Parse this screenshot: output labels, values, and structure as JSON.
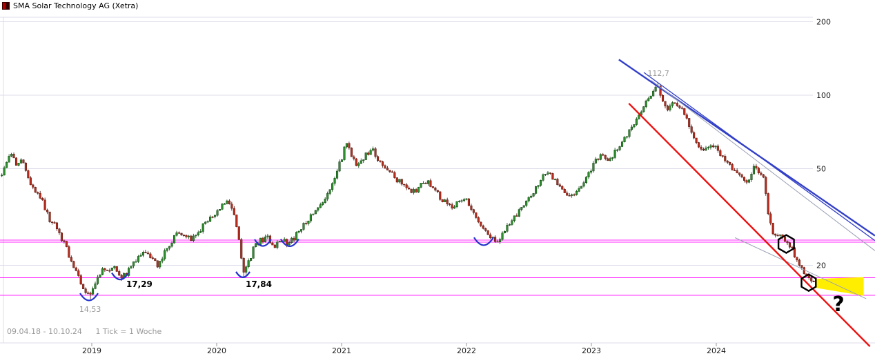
{
  "window": {
    "title": "SMA Solar Technology AG (Xetra)"
  },
  "footer": {
    "range_label": "09.04.18 - 10.10.24",
    "tick_label": "1 Tick = 1 Woche"
  },
  "colors": {
    "up_fill": "#2e8f2e",
    "up_stroke": "#0a3c0a",
    "down_fill": "#bb2d1e",
    "down_stroke": "#4a0f06",
    "grid": "#dcdcEA",
    "axis_text": "#1a1a1a",
    "magenta": "#ff2bff",
    "blue_trend": "#3340c8",
    "gray_trend": "#9aa0b4",
    "red_trend": "#ee1010",
    "arc_blue": "#2233cc",
    "hexagon": "#000000",
    "yellow_zone": "#ffee00",
    "muted_text": "#999999",
    "annotation_text": "#000000"
  },
  "chart_data": {
    "type": "candlestick",
    "title": "SMA Solar Technology AG (Xetra)",
    "instrument": "SMA Solar Technology AG",
    "exchange": "Xetra",
    "period": "09.04.18 - 10.10.24",
    "interval": "1 Tick = 1 Woche",
    "y_scale": "log",
    "y_ticks": [
      200,
      100,
      50,
      20
    ],
    "x_ticks": [
      2019,
      2020,
      2021,
      2022,
      2023,
      2024
    ],
    "x_range": [
      2018.28,
      2024.78
    ],
    "weeks": 340,
    "support_lines": [
      25.4,
      24.9,
      17.8,
      15.1
    ],
    "price_path_anchors": [
      [
        2018.28,
        47
      ],
      [
        2018.32,
        54
      ],
      [
        2018.36,
        57
      ],
      [
        2018.4,
        51
      ],
      [
        2018.44,
        54
      ],
      [
        2018.49,
        46
      ],
      [
        2018.53,
        42
      ],
      [
        2018.58,
        39
      ],
      [
        2018.62,
        35
      ],
      [
        2018.66,
        31
      ],
      [
        2018.71,
        29
      ],
      [
        2018.75,
        26
      ],
      [
        2018.79,
        24
      ],
      [
        2018.83,
        21
      ],
      [
        2018.87,
        19.5
      ],
      [
        2018.91,
        17
      ],
      [
        2018.95,
        15.5
      ],
      [
        2018.99,
        14.9
      ],
      [
        2019.03,
        17
      ],
      [
        2019.08,
        19.5
      ],
      [
        2019.13,
        18.5
      ],
      [
        2019.18,
        19.5
      ],
      [
        2019.23,
        17.8
      ],
      [
        2019.28,
        18.5
      ],
      [
        2019.33,
        20.5
      ],
      [
        2019.38,
        22
      ],
      [
        2019.43,
        22.5
      ],
      [
        2019.48,
        21
      ],
      [
        2019.53,
        20
      ],
      [
        2019.58,
        22.5
      ],
      [
        2019.64,
        25
      ],
      [
        2019.69,
        27.5
      ],
      [
        2019.74,
        27
      ],
      [
        2019.79,
        25.5
      ],
      [
        2019.84,
        27
      ],
      [
        2019.89,
        29
      ],
      [
        2019.94,
        31
      ],
      [
        2020.0,
        33
      ],
      [
        2020.05,
        35.5
      ],
      [
        2020.1,
        36.5
      ],
      [
        2020.14,
        32
      ],
      [
        2020.18,
        25
      ],
      [
        2020.22,
        18.5
      ],
      [
        2020.26,
        21
      ],
      [
        2020.31,
        24.5
      ],
      [
        2020.36,
        25.5
      ],
      [
        2020.41,
        26
      ],
      [
        2020.46,
        24
      ],
      [
        2020.51,
        26
      ],
      [
        2020.56,
        24.5
      ],
      [
        2020.61,
        25.5
      ],
      [
        2020.66,
        28
      ],
      [
        2020.71,
        30
      ],
      [
        2020.76,
        32
      ],
      [
        2020.81,
        34
      ],
      [
        2020.86,
        37
      ],
      [
        2020.91,
        41
      ],
      [
        2020.96,
        48
      ],
      [
        2021.0,
        55
      ],
      [
        2021.04,
        65
      ],
      [
        2021.08,
        57
      ],
      [
        2021.12,
        52
      ],
      [
        2021.17,
        55
      ],
      [
        2021.21,
        58
      ],
      [
        2021.25,
        60
      ],
      [
        2021.29,
        54
      ],
      [
        2021.34,
        50
      ],
      [
        2021.39,
        48
      ],
      [
        2021.44,
        45
      ],
      [
        2021.49,
        43
      ],
      [
        2021.54,
        41
      ],
      [
        2021.59,
        40
      ],
      [
        2021.64,
        43
      ],
      [
        2021.69,
        44
      ],
      [
        2021.74,
        41
      ],
      [
        2021.79,
        38
      ],
      [
        2021.84,
        36
      ],
      [
        2021.89,
        35
      ],
      [
        2021.94,
        37
      ],
      [
        2021.99,
        38
      ],
      [
        2022.04,
        34
      ],
      [
        2022.09,
        31
      ],
      [
        2022.14,
        28.5
      ],
      [
        2022.19,
        26
      ],
      [
        2022.24,
        25
      ],
      [
        2022.29,
        27
      ],
      [
        2022.34,
        29.5
      ],
      [
        2022.39,
        32
      ],
      [
        2022.44,
        34
      ],
      [
        2022.49,
        37
      ],
      [
        2022.54,
        40
      ],
      [
        2022.59,
        45
      ],
      [
        2022.64,
        48
      ],
      [
        2022.69,
        46
      ],
      [
        2022.74,
        43
      ],
      [
        2022.79,
        40
      ],
      [
        2022.84,
        38.5
      ],
      [
        2022.89,
        41
      ],
      [
        2022.94,
        44
      ],
      [
        2022.99,
        49
      ],
      [
        2023.04,
        54
      ],
      [
        2023.09,
        57
      ],
      [
        2023.14,
        53
      ],
      [
        2023.19,
        59
      ],
      [
        2023.24,
        64
      ],
      [
        2023.29,
        70
      ],
      [
        2023.34,
        76
      ],
      [
        2023.39,
        83
      ],
      [
        2023.44,
        93
      ],
      [
        2023.49,
        104
      ],
      [
        2023.53,
        109
      ],
      [
        2023.57,
        97
      ],
      [
        2023.61,
        87
      ],
      [
        2023.65,
        94
      ],
      [
        2023.7,
        91
      ],
      [
        2023.75,
        82
      ],
      [
        2023.8,
        70
      ],
      [
        2023.85,
        62
      ],
      [
        2023.9,
        58
      ],
      [
        2023.95,
        64
      ],
      [
        2024.0,
        61
      ],
      [
        2024.05,
        56
      ],
      [
        2024.1,
        52
      ],
      [
        2024.15,
        49
      ],
      [
        2024.2,
        46
      ],
      [
        2024.25,
        44
      ],
      [
        2024.3,
        50
      ],
      [
        2024.34,
        48
      ],
      [
        2024.38,
        45
      ],
      [
        2024.42,
        31
      ],
      [
        2024.46,
        27
      ],
      [
        2024.5,
        26.5
      ],
      [
        2024.54,
        25.5
      ],
      [
        2024.58,
        24.5
      ],
      [
        2024.62,
        22.5
      ],
      [
        2024.66,
        20.5
      ],
      [
        2024.7,
        18.8
      ],
      [
        2024.74,
        17.5
      ],
      [
        2024.78,
        16.8
      ]
    ],
    "forced_extremes": [
      {
        "year": 2018.99,
        "low": 14.53
      },
      {
        "year": 2019.23,
        "low": 17.29
      },
      {
        "year": 2020.22,
        "low": 17.84
      },
      {
        "year": 2023.53,
        "high": 112.7
      }
    ],
    "trend_lines": [
      {
        "name": "blue-upper",
        "color": "blue_trend",
        "width": 2.4,
        "from": [
          2023.22,
          140
        ],
        "to": [
          2025.27,
          26.5
        ]
      },
      {
        "name": "blue-lower",
        "color": "blue_trend",
        "width": 1.3,
        "from": [
          2023.42,
          124
        ],
        "to": [
          2025.27,
          25.3
        ]
      },
      {
        "name": "gray-upper",
        "color": "gray_trend",
        "width": 1,
        "from": [
          2023.48,
          115
        ],
        "to": [
          2025.27,
          23.0
        ]
      },
      {
        "name": "gray-lower",
        "color": "gray_trend",
        "width": 1,
        "from": [
          2024.15,
          26.0
        ],
        "to": [
          2025.2,
          14.6
        ]
      },
      {
        "name": "red-main",
        "color": "red_trend",
        "width": 2.4,
        "from": [
          2023.3,
          92.5
        ],
        "to": [
          2025.23,
          9.3
        ]
      }
    ],
    "annotations": [
      {
        "name": "peak-price",
        "text": "112,7",
        "year": 2023.45,
        "price": 120,
        "color": "muted_text",
        "bold": false,
        "size": 11
      },
      {
        "name": "low-14-53",
        "text": "14,53",
        "year": 2018.9,
        "price": 12.9,
        "color": "muted_text",
        "bold": false,
        "size": 11
      },
      {
        "name": "low-17-29",
        "text": "17,29",
        "year": 2019.276,
        "price": 16.3,
        "color": "annotation_text",
        "bold": true,
        "size": 12
      },
      {
        "name": "low-17-84",
        "text": "17,84",
        "year": 2020.232,
        "price": 16.3,
        "color": "annotation_text",
        "bold": true,
        "size": 12
      },
      {
        "name": "question-mark",
        "text": "?",
        "year": 2024.93,
        "price": 13.0,
        "color": "annotation_text",
        "bold": true,
        "size": 30
      }
    ],
    "cup_marks": [
      {
        "year": 2018.978,
        "price": 14.8,
        "r": 13
      },
      {
        "year": 2019.227,
        "price": 18.0,
        "r": 12
      },
      {
        "year": 2020.21,
        "price": 18.3,
        "r": 10
      },
      {
        "year": 2020.37,
        "price": 24.7,
        "r": 12
      },
      {
        "year": 2020.585,
        "price": 24.7,
        "r": 13
      },
      {
        "year": 2022.138,
        "price": 25.0,
        "r": 14
      }
    ],
    "hexagon_marks": [
      {
        "year": 2024.56,
        "price": 24.5,
        "r": 13
      },
      {
        "year": 2024.74,
        "price": 17.0,
        "r": 12
      }
    ],
    "yellow_zone": [
      [
        2024.79,
        17.6
      ],
      [
        2025.18,
        17.9
      ],
      [
        2025.18,
        15.0
      ],
      [
        2024.79,
        16.2
      ]
    ]
  }
}
